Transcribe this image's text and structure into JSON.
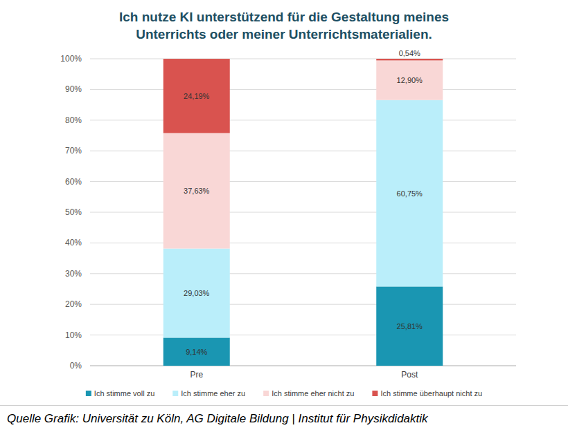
{
  "chart_data": {
    "type": "bar",
    "title": "Ich nutze KI unterstützend für die Gestaltung meines Unterrichts oder meiner Unterrichtsmaterialien.",
    "source": "Quelle Grafik: Universität zu Köln, AG Digitale Bildung | Institut für Physikdidaktik",
    "categories": [
      "Pre",
      "Post"
    ],
    "series": [
      {
        "name": "Ich stimme voll zu",
        "color": "#1a96b2",
        "values": [
          9.14,
          25.81
        ],
        "value_labels": [
          "9,14%",
          "25,81%"
        ]
      },
      {
        "name": "Ich stimme eher zu",
        "color": "#baeefa",
        "values": [
          29.03,
          60.75
        ],
        "value_labels": [
          "29,03%",
          "60,75%"
        ]
      },
      {
        "name": "Ich stimme eher nicht zu",
        "color": "#f9d7d6",
        "values": [
          37.63,
          12.9
        ],
        "value_labels": [
          "37,63%",
          "12,90%"
        ]
      },
      {
        "name": "Ich stimme überhaupt nicht zu",
        "color": "#d9534f",
        "values": [
          24.19,
          0.54
        ],
        "value_labels": [
          "24,19%",
          "0,54%"
        ]
      }
    ],
    "ylim": [
      0,
      100
    ],
    "yticks": [
      {
        "value": 0,
        "label": "0%"
      },
      {
        "value": 10,
        "label": "10%"
      },
      {
        "value": 20,
        "label": "20%"
      },
      {
        "value": 30,
        "label": "30%"
      },
      {
        "value": 40,
        "label": "40%"
      },
      {
        "value": 50,
        "label": "50%"
      },
      {
        "value": 60,
        "label": "60%"
      },
      {
        "value": 70,
        "label": "70%"
      },
      {
        "value": 80,
        "label": "80%"
      },
      {
        "value": 90,
        "label": "90%"
      },
      {
        "value": 100,
        "label": "100%"
      }
    ],
    "stacked": true,
    "data_labels": true,
    "grid": true,
    "legend": "bottom"
  }
}
